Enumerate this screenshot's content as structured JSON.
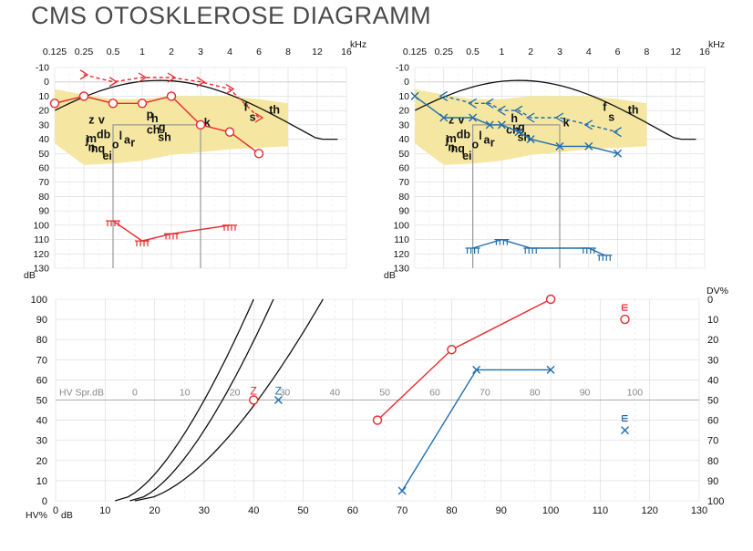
{
  "title": "CMS OTOSKLEROSE DIAGRAMM",
  "colors": {
    "right_ear": "#e8282d",
    "left_ear": "#1f6ead",
    "speech_banana": "#f5e7a1",
    "grid": "#d9d9d9",
    "curve": "#111111"
  },
  "chart_data": [
    {
      "type": "line",
      "panel": "audiogram-right",
      "x_ticks": [
        "0.125",
        "0.25",
        "0.5",
        "1",
        "2",
        "3",
        "4",
        "6",
        "8",
        "12",
        "16"
      ],
      "x_unit": "kHz",
      "y_ticks": [
        "-10",
        "0",
        "10",
        "20",
        "30",
        "40",
        "50",
        "60",
        "70",
        "80",
        "90",
        "100",
        "110",
        "120",
        "130"
      ],
      "y_unit": "dB",
      "ylim": [
        -10,
        130
      ],
      "grid": true,
      "series": [
        {
          "kind": "air-conduction",
          "marker": "circle",
          "line": "solid",
          "points": [
            [
              0.125,
              15
            ],
            [
              0.25,
              10
            ],
            [
              0.5,
              15
            ],
            [
              1,
              15
            ],
            [
              2,
              10
            ],
            [
              3,
              30
            ],
            [
              4,
              35
            ],
            [
              6,
              50
            ]
          ]
        },
        {
          "kind": "bone-conduction",
          "marker": ">",
          "line": "dashed",
          "points": [
            [
              0.25,
              -5
            ],
            [
              0.5,
              0
            ],
            [
              1,
              -3
            ],
            [
              2,
              -3
            ],
            [
              3,
              0
            ],
            [
              4,
              5
            ],
            [
              6,
              25
            ]
          ]
        },
        {
          "kind": "uncomfortable-level",
          "marker": "comb",
          "line": "solid",
          "points": [
            [
              0.5,
              97
            ],
            [
              1,
              111
            ],
            [
              2,
              106
            ],
            [
              4,
              100
            ]
          ]
        }
      ],
      "speech_sounds": [
        {
          "label": "z",
          "x": 0.3,
          "y": 26
        },
        {
          "label": "v",
          "x": 0.38,
          "y": 26
        },
        {
          "label": "j",
          "x": 0.27,
          "y": 40
        },
        {
          "label": "m",
          "x": 0.3,
          "y": 39
        },
        {
          "label": "db",
          "x": 0.4,
          "y": 36
        },
        {
          "label": "n",
          "x": 0.3,
          "y": 45
        },
        {
          "label": "nq",
          "x": 0.35,
          "y": 46
        },
        {
          "label": "e",
          "x": 0.42,
          "y": 51
        },
        {
          "label": "i",
          "x": 0.47,
          "y": 51
        },
        {
          "label": "o",
          "x": 0.53,
          "y": 43
        },
        {
          "label": "l",
          "x": 0.6,
          "y": 37
        },
        {
          "label": "a",
          "x": 0.7,
          "y": 40
        },
        {
          "label": "r",
          "x": 0.8,
          "y": 42
        },
        {
          "label": "p",
          "x": 1.2,
          "y": 22
        },
        {
          "label": "h",
          "x": 1.35,
          "y": 25
        },
        {
          "label": "ch",
          "x": 1.3,
          "y": 33
        },
        {
          "label": "g",
          "x": 1.6,
          "y": 31
        },
        {
          "label": "sh",
          "x": 1.7,
          "y": 38
        },
        {
          "label": "k",
          "x": 3.2,
          "y": 28
        },
        {
          "label": "f",
          "x": 5,
          "y": 17
        },
        {
          "label": "s",
          "x": 5.5,
          "y": 24
        },
        {
          "label": "th",
          "x": 7,
          "y": 19
        }
      ]
    },
    {
      "type": "line",
      "panel": "audiogram-left",
      "x_ticks": [
        "0.125",
        "0.25",
        "0.5",
        "1",
        "2",
        "3",
        "4",
        "6",
        "8",
        "12",
        "16"
      ],
      "x_unit": "kHz",
      "y_ticks": [
        "-10",
        "0",
        "10",
        "20",
        "30",
        "40",
        "50",
        "60",
        "70",
        "80",
        "90",
        "100",
        "110",
        "120",
        "130"
      ],
      "y_unit": "dB",
      "ylim": [
        -10,
        130
      ],
      "grid": true,
      "series": [
        {
          "kind": "air-conduction",
          "marker": "x",
          "line": "solid",
          "points": [
            [
              0.125,
              10
            ],
            [
              0.25,
              25
            ],
            [
              0.5,
              25
            ],
            [
              0.75,
              30
            ],
            [
              1,
              30
            ],
            [
              1.5,
              35
            ],
            [
              2,
              40
            ],
            [
              3,
              45
            ],
            [
              4,
              45
            ],
            [
              6,
              50
            ]
          ]
        },
        {
          "kind": "bone-conduction",
          "marker": "<",
          "line": "dashed",
          "points": [
            [
              0.25,
              10
            ],
            [
              0.5,
              15
            ],
            [
              0.75,
              15
            ],
            [
              1,
              20
            ],
            [
              1.5,
              20
            ],
            [
              2,
              25
            ],
            [
              3,
              25
            ],
            [
              4,
              30
            ],
            [
              6,
              35
            ]
          ]
        },
        {
          "kind": "uncomfortable-level",
          "marker": "comb",
          "line": "solid",
          "points": [
            [
              0.5,
              116
            ],
            [
              1,
              110
            ],
            [
              2,
              116
            ],
            [
              4,
              116
            ],
            [
              5,
              121
            ]
          ]
        }
      ],
      "speech_sounds": [
        {
          "label": "z",
          "x": 0.3,
          "y": 26
        },
        {
          "label": "v",
          "x": 0.38,
          "y": 26
        },
        {
          "label": "j",
          "x": 0.27,
          "y": 40
        },
        {
          "label": "m",
          "x": 0.3,
          "y": 39
        },
        {
          "label": "db",
          "x": 0.4,
          "y": 36
        },
        {
          "label": "n",
          "x": 0.3,
          "y": 45
        },
        {
          "label": "nq",
          "x": 0.35,
          "y": 46
        },
        {
          "label": "e",
          "x": 0.42,
          "y": 51
        },
        {
          "label": "i",
          "x": 0.47,
          "y": 51
        },
        {
          "label": "o",
          "x": 0.53,
          "y": 43
        },
        {
          "label": "l",
          "x": 0.6,
          "y": 37
        },
        {
          "label": "a",
          "x": 0.7,
          "y": 40
        },
        {
          "label": "r",
          "x": 0.8,
          "y": 42
        },
        {
          "label": "h",
          "x": 1.35,
          "y": 25
        },
        {
          "label": "ch",
          "x": 1.3,
          "y": 33
        },
        {
          "label": "g",
          "x": 1.6,
          "y": 31
        },
        {
          "label": "sh",
          "x": 1.7,
          "y": 38
        },
        {
          "label": "k",
          "x": 3.2,
          "y": 28
        },
        {
          "label": "f",
          "x": 5,
          "y": 17
        },
        {
          "label": "s",
          "x": 5.5,
          "y": 24
        },
        {
          "label": "th",
          "x": 7,
          "y": 19
        }
      ]
    },
    {
      "type": "line",
      "panel": "speech-audiogram",
      "x_ticks": [
        "0",
        "10",
        "20",
        "30",
        "40",
        "50",
        "60",
        "70",
        "80",
        "90",
        "100",
        "110",
        "120",
        "130"
      ],
      "x_unit": "dB",
      "xlim": [
        0,
        130
      ],
      "y_ticks": [
        "0",
        "10",
        "20",
        "30",
        "40",
        "50",
        "60",
        "70",
        "80",
        "90",
        "100"
      ],
      "y_unit": "HV%",
      "ylim": [
        0,
        100
      ],
      "y2_ticks": [
        "0",
        "10",
        "20",
        "30",
        "40",
        "50",
        "60",
        "70",
        "80",
        "90",
        "100"
      ],
      "y2_unit": "DV%",
      "secondary_axis_label": "HV Spr.dB",
      "secondary_axis_ticks": [
        "0",
        "10",
        "20",
        "30",
        "40",
        "50",
        "60",
        "70",
        "80",
        "90",
        "100"
      ],
      "grid": true,
      "series": [
        {
          "kind": "right-ear",
          "marker": "circle",
          "points": [
            [
              65,
              40
            ],
            [
              80,
              75
            ],
            [
              100,
              100
            ]
          ]
        },
        {
          "kind": "left-ear",
          "marker": "x",
          "points": [
            [
              70,
              5
            ],
            [
              85,
              65
            ],
            [
              100,
              65
            ]
          ]
        },
        {
          "kind": "right-ear-number-test",
          "marker": "circle",
          "points": [
            [
              40,
              50
            ]
          ]
        },
        {
          "kind": "left-ear-number-test",
          "marker": "x",
          "points": [
            [
              45,
              50
            ]
          ]
        },
        {
          "kind": "right-ear-discomfort",
          "marker": "circle",
          "points": [
            [
              115,
              90
            ]
          ]
        },
        {
          "kind": "left-ear-discomfort",
          "marker": "x",
          "points": [
            [
              115,
              35
            ]
          ]
        }
      ],
      "marker_labels": [
        {
          "text": "Z",
          "kind": "right-ear-number-test"
        },
        {
          "text": "Z",
          "kind": "left-ear-number-test"
        }
      ]
    }
  ]
}
